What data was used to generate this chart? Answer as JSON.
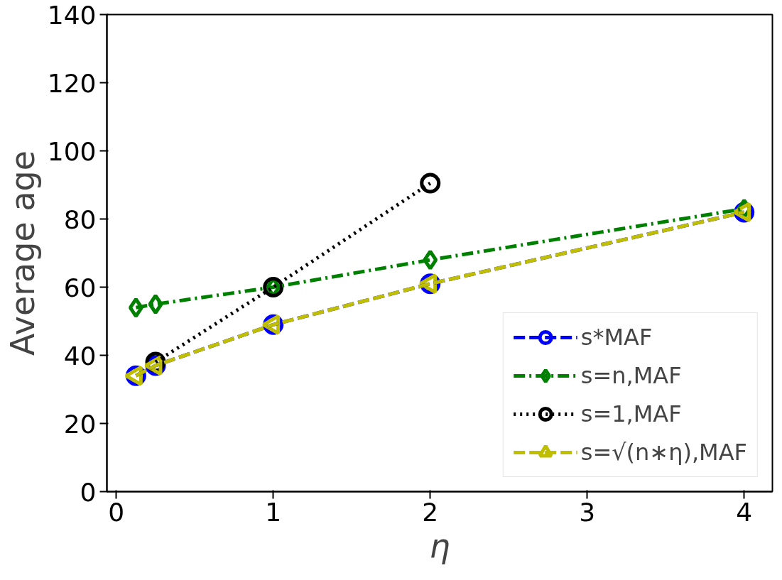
{
  "chart_data": {
    "type": "line",
    "xlabel": "η",
    "ylabel": "Average age",
    "xlim": [
      -0.06,
      4.18
    ],
    "ylim": [
      0,
      140
    ],
    "xticks": [
      0,
      1,
      2,
      3,
      4
    ],
    "yticks": [
      0,
      20,
      40,
      60,
      80,
      100,
      120,
      140
    ],
    "grid": false,
    "legend": "bottom right",
    "x": [
      0.125,
      0.25,
      1,
      2,
      4
    ],
    "series": [
      {
        "name": "s*MAF",
        "color": "#0000ff",
        "values": [
          34,
          37,
          49,
          61,
          82
        ],
        "marker": "circle",
        "line_style": "dashed"
      },
      {
        "name": "s=n,MAF",
        "color": "#008000",
        "values": [
          54,
          55,
          60,
          68,
          83
        ],
        "marker": "diamond",
        "line_style": "dashdot"
      },
      {
        "name": "s=1,MAF",
        "color": "#000000",
        "values": [
          null,
          38,
          60,
          90.5,
          null
        ],
        "marker": "circle",
        "line_style": "dotted"
      },
      {
        "name": "s=√(n∗η),MAF",
        "color": "#bfbf00",
        "values": [
          34,
          37,
          49,
          61,
          82
        ],
        "marker": "triangle_left",
        "line_style": "dashed"
      }
    ]
  }
}
